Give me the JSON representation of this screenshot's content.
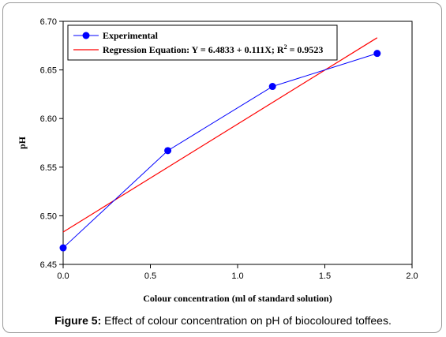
{
  "chart_data": {
    "type": "line",
    "xlabel": "Colour concentration (ml of standard solution)",
    "ylabel": "pH",
    "xlim": [
      0.0,
      2.0
    ],
    "ylim": [
      6.45,
      6.7
    ],
    "x_ticks": [
      "0.0",
      "0.5",
      "1.0",
      "1.5",
      "2.0"
    ],
    "y_ticks": [
      "6.45",
      "6.50",
      "6.55",
      "6.60",
      "6.65",
      "6.70"
    ],
    "x_tick_values": [
      0.0,
      0.5,
      1.0,
      1.5,
      2.0
    ],
    "y_tick_values": [
      6.45,
      6.5,
      6.55,
      6.6,
      6.65,
      6.7
    ],
    "legend_position": "top-left",
    "grid": false,
    "series": [
      {
        "name": "Experimental",
        "color": "#0000ff",
        "marker": "circle",
        "x": [
          0.0,
          0.6,
          1.2,
          1.8
        ],
        "y": [
          6.467,
          6.567,
          6.633,
          6.667
        ]
      },
      {
        "name": "Regression Equation: Y = 6.4833 + 0.111X; R² = 0.9523",
        "color": "#ff0000",
        "marker": "none",
        "x": [
          0.0,
          1.8
        ],
        "y": [
          6.4833,
          6.6831
        ]
      }
    ]
  },
  "caption": {
    "label": "Figure 5:",
    "text": " Effect of colour concentration on pH of biocoloured toffees."
  }
}
